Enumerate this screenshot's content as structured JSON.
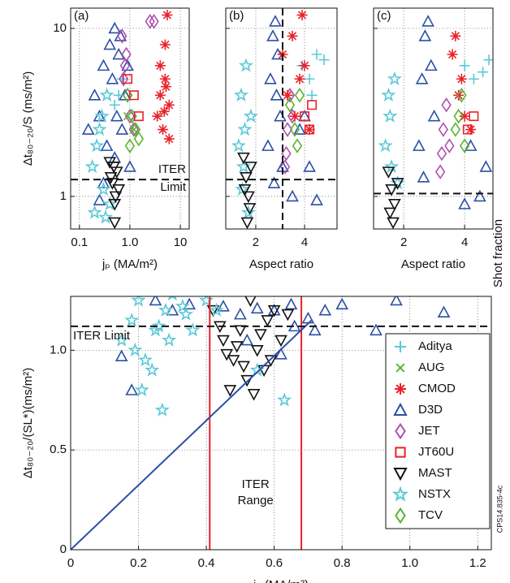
{
  "chart_data": [
    {
      "type": "scatter",
      "panel_label": "(a)",
      "ylabel": "Δt₈₀₋₂₀/S (ms/m²)",
      "xlabel": "jₚ (MA/m²)",
      "xscale": "log",
      "yscale": "log",
      "xlim": [
        0.067,
        15
      ],
      "ylim": [
        0.64,
        13.2
      ],
      "xticks": [
        0.1,
        {
          "value": 1,
          "label": "1.0"
        },
        10
      ],
      "yticks": [
        1,
        10
      ],
      "grid": true,
      "limit_y": 1.26,
      "limit_label": [
        "ITER",
        "Limit"
      ],
      "series": [
        {
          "color": "#2b4fa6",
          "marker": "triangle",
          "x": [
            0.15,
            0.2,
            0.25,
            0.3,
            0.35,
            0.4,
            0.45,
            0.5,
            0.55,
            0.6,
            0.7,
            0.8,
            1.0,
            0.3,
            0.25,
            0.9,
            0.5,
            0.65
          ],
          "values": [
            2.5,
            4,
            3,
            6,
            2,
            8,
            5,
            10,
            3,
            7,
            2.5,
            4,
            1.5,
            1.2,
            0.95,
            6,
            1.7,
            9
          ]
        },
        {
          "color": "#5cc8d8",
          "marker": "star",
          "x": [
            0.18,
            0.2,
            0.25,
            0.3,
            0.35,
            0.4,
            0.28,
            0.22,
            0.33
          ],
          "values": [
            1.5,
            0.8,
            2.5,
            1.1,
            4,
            0.9,
            3,
            2,
            0.75
          ]
        },
        {
          "color": "#5cc8d8",
          "marker": "plus",
          "x": [
            0.6,
            0.7,
            0.5
          ],
          "values": [
            4,
            5,
            3.5
          ]
        },
        {
          "color": "#111111",
          "marker": "tridown",
          "x": [
            0.4,
            0.45,
            0.5,
            0.55,
            0.6,
            0.5,
            0.48,
            0.42,
            0.52
          ],
          "values": [
            1.6,
            1.2,
            0.9,
            1.4,
            1.1,
            0.7,
            1.5,
            1.3,
            1.0
          ]
        },
        {
          "color": "#b04fb0",
          "marker": "diamond",
          "x": [
            0.7,
            0.8,
            0.9,
            1.0,
            0.75,
            1.2,
            2.5,
            3.0,
            0.85
          ],
          "values": [
            9,
            6,
            4,
            3,
            5,
            2.5,
            11,
            11,
            7
          ]
        },
        {
          "color": "#5ab52e",
          "marker": "diamond",
          "x": [
            0.9,
            1.1,
            1.3,
            1.0,
            1.5
          ],
          "values": [
            4,
            3,
            2.5,
            2,
            2.2
          ]
        },
        {
          "color": "#e8222a",
          "marker": "asterisk",
          "x": [
            3.5,
            4,
            5,
            4.5,
            6,
            5,
            5.5,
            4,
            6,
            4.8,
            5.2
          ],
          "values": [
            3,
            4,
            5,
            2.5,
            3.5,
            8,
            12,
            6,
            2.2,
            3.2,
            4.5
          ]
        },
        {
          "color": "#e8222a",
          "marker": "square",
          "x": [
            0.9,
            1.5,
            1.2
          ],
          "values": [
            5,
            3,
            4
          ]
        },
        {
          "color": "#5ab52e",
          "marker": "x",
          "x": [
            0.9,
            1.2
          ],
          "values": [
            3,
            2.5
          ]
        }
      ]
    },
    {
      "type": "scatter",
      "panel_label": "(b)",
      "xlabel": "Aspect ratio",
      "xscale": "linear",
      "yscale": "log",
      "xlim": [
        0.77,
        5.33
      ],
      "ylim": [
        0.64,
        13.2
      ],
      "xticks": [
        2,
        4
      ],
      "yticks": [
        1,
        10
      ],
      "grid": true,
      "limit_y": 1.26,
      "vline_x": 3.1,
      "series": [
        {
          "color": "#5cc8d8",
          "marker": "star",
          "x": [
            1.3,
            1.4,
            1.5,
            1.6,
            1.7,
            1.8,
            1.45,
            1.55
          ],
          "values": [
            2,
            4,
            1.5,
            6,
            0.8,
            3,
            1.1,
            2.5
          ]
        },
        {
          "color": "#111111",
          "marker": "tridown",
          "x": [
            1.5,
            1.6,
            1.7,
            1.8,
            1.65,
            1.55,
            1.75
          ],
          "values": [
            1.7,
            1.3,
            1.0,
            1.5,
            0.7,
            1.1,
            0.85
          ]
        },
        {
          "color": "#2b4fa6",
          "marker": "triangle",
          "x": [
            2.5,
            2.6,
            2.7,
            2.8,
            2.9,
            3.0,
            3.1,
            2.75,
            2.85,
            3.5,
            3.8,
            4.2,
            4.5,
            4.0
          ],
          "values": [
            2,
            5,
            9,
            11,
            7,
            3,
            1.5,
            1.2,
            4,
            1.0,
            2.5,
            1.5,
            0.95,
            3
          ]
        },
        {
          "color": "#5cc8d8",
          "marker": "plus",
          "x": [
            3.9,
            4.2,
            4.5,
            4.8,
            4.3
          ],
          "values": [
            6,
            5,
            7,
            6.5,
            4
          ]
        },
        {
          "color": "#b04fb0",
          "marker": "diamond",
          "x": [
            3.2,
            3.3,
            3.4,
            3.5,
            3.25
          ],
          "values": [
            1.5,
            2.5,
            4,
            3,
            1.8
          ]
        },
        {
          "color": "#e8222a",
          "marker": "asterisk",
          "x": [
            3.1,
            3.3,
            3.6,
            3.8,
            4.0,
            4.2,
            3.9,
            3.5
          ],
          "values": [
            7,
            4,
            3,
            5,
            6,
            2.5,
            12,
            9
          ]
        },
        {
          "color": "#5ab52e",
          "marker": "diamond",
          "x": [
            3.4,
            3.6,
            3.8,
            3.7
          ],
          "values": [
            3.5,
            2.5,
            4,
            2
          ]
        },
        {
          "color": "#e8222a",
          "marker": "square",
          "x": [
            4.0,
            4.2,
            4.3
          ],
          "values": [
            3,
            2.5,
            3.5
          ]
        }
      ]
    },
    {
      "type": "scatter",
      "panel_label": "(c)",
      "xlabel": "Aspect ratio",
      "xscale": "linear",
      "yscale": "log",
      "xlim": [
        1.01,
        4.93
      ],
      "ylim": [
        0.64,
        13.2
      ],
      "xticks": [
        2,
        4
      ],
      "yticks": [
        1,
        10
      ],
      "grid": true,
      "limit_y": 1.04,
      "series": [
        {
          "color": "#5cc8d8",
          "marker": "star",
          "x": [
            1.4,
            1.5,
            1.6,
            1.7,
            1.8,
            1.55
          ],
          "values": [
            2,
            4,
            1.5,
            5,
            1.2,
            3
          ]
        },
        {
          "color": "#111111",
          "marker": "tridown",
          "x": [
            1.5,
            1.6,
            1.7,
            1.8,
            1.65,
            1.55
          ],
          "values": [
            1.4,
            1.1,
            0.9,
            1.2,
            0.7,
            0.8
          ]
        },
        {
          "color": "#2b4fa6",
          "marker": "triangle",
          "x": [
            2.5,
            2.6,
            2.7,
            2.8,
            2.9,
            3.0,
            2.65,
            4.2,
            4.5,
            4.7,
            4.0
          ],
          "values": [
            2,
            5,
            9,
            11,
            6,
            3,
            1.3,
            2,
            1.0,
            1.5,
            0.9
          ]
        },
        {
          "color": "#5cc8d8",
          "marker": "plus",
          "x": [
            4.0,
            4.3,
            4.6,
            4.8
          ],
          "values": [
            6,
            5,
            5.5,
            6.5
          ]
        },
        {
          "color": "#b04fb0",
          "marker": "diamond",
          "x": [
            3.2,
            3.3,
            3.4,
            3.5,
            3.25
          ],
          "values": [
            1.4,
            2.5,
            3.5,
            2.0,
            1.8
          ]
        },
        {
          "color": "#e8222a",
          "marker": "asterisk",
          "x": [
            3.6,
            3.8,
            4.0,
            4.2,
            3.7,
            3.9
          ],
          "values": [
            7,
            4,
            3,
            2.5,
            9,
            5
          ]
        },
        {
          "color": "#5ab52e",
          "marker": "diamond",
          "x": [
            3.7,
            3.9,
            4.0,
            3.8
          ],
          "values": [
            2.5,
            4,
            2,
            3
          ]
        },
        {
          "color": "#e8222a",
          "marker": "square",
          "x": [
            4.1,
            4.3
          ],
          "values": [
            2.5,
            3
          ]
        }
      ]
    },
    {
      "type": "scatter",
      "ylabel": "Δt₈₀₋₂₀/(SL*)(ms/m²)",
      "xlabel": "jₚ (MA/m²)",
      "xscale": "linear",
      "yscale": "linear",
      "xlim": [
        0,
        1.24
      ],
      "ylim": [
        0,
        1.27
      ],
      "xticks": [
        0,
        0.2,
        0.4,
        0.6,
        0.8,
        {
          "value": 1,
          "label": "1.0"
        },
        1.2
      ],
      "yticks": [
        0,
        0.5,
        {
          "value": 1,
          "label": "1.0"
        }
      ],
      "grid": true,
      "limit_y": 1.12,
      "limit_label": [
        "ITER Limit"
      ],
      "range": [
        0.41,
        0.68
      ],
      "range_label": [
        "ITER",
        "Range"
      ],
      "fit_line": {
        "x": [
          0,
          0.71
        ],
        "values": [
          0,
          1.15
        ]
      },
      "side_label": "Shot fraction",
      "figure_id": "CPS14.835-4c",
      "legend_loc": "center right",
      "series": [
        {
          "name": "Aditya",
          "color": "#5cc8d8",
          "marker": "plus",
          "x": [],
          "values": []
        },
        {
          "name": "AUG",
          "color": "#5ab52e",
          "marker": "x",
          "x": [],
          "values": []
        },
        {
          "name": "CMOD",
          "color": "#e8222a",
          "marker": "asterisk",
          "x": [],
          "values": []
        },
        {
          "name": "D3D",
          "color": "#2b4fa6",
          "marker": "triangle",
          "x": [
            0.15,
            0.25,
            0.3,
            0.35,
            0.45,
            0.5,
            0.55,
            0.6,
            0.65,
            0.7,
            0.75,
            0.8,
            0.9,
            0.96,
            1.1,
            0.52,
            0.62,
            0.18,
            0.72,
            0.66
          ],
          "values": [
            0.97,
            1.25,
            1.2,
            1.23,
            1.22,
            1.18,
            1.21,
            1.2,
            1.23,
            1.16,
            1.2,
            1.23,
            1.1,
            1.25,
            1.19,
            1.05,
            0.98,
            0.8,
            1.1,
            1.12
          ]
        },
        {
          "name": "JET",
          "color": "#b04fb0",
          "marker": "diamond",
          "x": [],
          "values": []
        },
        {
          "name": "JT60U",
          "color": "#e8222a",
          "marker": "square",
          "x": [],
          "values": []
        },
        {
          "name": "MAST",
          "color": "#111111",
          "marker": "tridown",
          "x": [
            0.42,
            0.45,
            0.48,
            0.5,
            0.52,
            0.55,
            0.58,
            0.6,
            0.47,
            0.53,
            0.57,
            0.49,
            0.44,
            0.62,
            0.51,
            0.56,
            0.46,
            0.59,
            0.54,
            0.64
          ],
          "values": [
            1.2,
            1.05,
            0.95,
            1.1,
            0.85,
            1.0,
            1.15,
            1.2,
            0.8,
            1.25,
            0.9,
            1.02,
            1.12,
            1.05,
            0.92,
            1.08,
            0.98,
            0.95,
            0.78,
            1.18
          ]
        },
        {
          "name": "NSTX",
          "color": "#5cc8d8",
          "marker": "star",
          "x": [
            0.15,
            0.18,
            0.2,
            0.22,
            0.25,
            0.28,
            0.3,
            0.33,
            0.36,
            0.4,
            0.24,
            0.27,
            0.21,
            0.43,
            0.55,
            0.63,
            0.29,
            0.19,
            0.26,
            0.34
          ],
          "values": [
            1.05,
            1.15,
            1.25,
            0.95,
            1.1,
            1.2,
            1.28,
            1.22,
            1.1,
            1.25,
            0.9,
            0.7,
            0.8,
            1.2,
            0.9,
            0.75,
            1.05,
            1.0,
            1.12,
            1.18
          ]
        },
        {
          "name": "TCV",
          "color": "#5ab52e",
          "marker": "diamond",
          "x": [],
          "values": []
        }
      ]
    }
  ]
}
